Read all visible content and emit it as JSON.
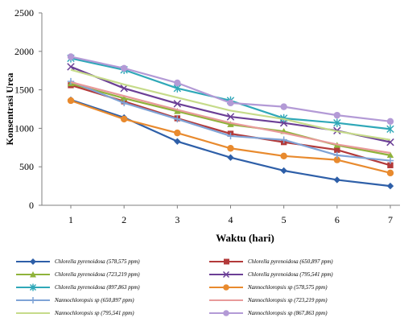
{
  "chart_data": {
    "type": "line",
    "title": "",
    "xlabel": "Waktu (hari)",
    "ylabel": "Konsentrasi Urea",
    "x": [
      1,
      2,
      3,
      4,
      5,
      6,
      7
    ],
    "xlim": [
      1,
      7
    ],
    "ylim": [
      0,
      2500
    ],
    "yticks": [
      0,
      500,
      1000,
      1500,
      2000,
      2500
    ],
    "xticks": [
      1,
      2,
      3,
      4,
      5,
      6,
      7
    ],
    "grid": false,
    "legend_position": "bottom",
    "series": [
      {
        "name": "Chlorella pyrenoidosa  (578,575 ppm)",
        "color": "#2E5FA8",
        "marker": "diamond",
        "values": [
          1370,
          1140,
          830,
          620,
          450,
          330,
          250
        ]
      },
      {
        "name": "Chlorella pyrenoidosa  (650,897 ppm)",
        "color": "#B33A3A",
        "marker": "square",
        "values": [
          1560,
          1350,
          1130,
          930,
          820,
          720,
          520
        ]
      },
      {
        "name": "Chlorella pyrenoidosa  (723,219 ppm)",
        "color": "#8FB33A",
        "marker": "triangle",
        "values": [
          1580,
          1390,
          1220,
          1050,
          960,
          780,
          650
        ]
      },
      {
        "name": "Chlorella pyrenoidosa  (795,541 ppm)",
        "color": "#6B3F96",
        "marker": "x",
        "values": [
          1800,
          1520,
          1320,
          1150,
          1070,
          970,
          820
        ]
      },
      {
        "name": "Chlorella pyrenoidosa  (897,863 ppm)",
        "color": "#2FA8B8",
        "marker": "star",
        "values": [
          1910,
          1760,
          1520,
          1360,
          1130,
          1070,
          990
        ]
      },
      {
        "name": "Nannochloropsis  sp (578,575 ppm)",
        "color": "#E88A2E",
        "marker": "circle",
        "values": [
          1360,
          1120,
          940,
          740,
          640,
          590,
          420
        ]
      },
      {
        "name": "Nannochloropsis  sp (650,897 ppm)",
        "color": "#7FA3D6",
        "marker": "plus",
        "values": [
          1610,
          1330,
          1120,
          900,
          850,
          650,
          580
        ]
      },
      {
        "name": "Nannochloropsis  sp (723,219 ppm)",
        "color": "#E89A9A",
        "marker": "none",
        "values": [
          1600,
          1420,
          1240,
          1070,
          940,
          790,
          680
        ]
      },
      {
        "name": "Nannochloropsis  sp (795,541 ppm)",
        "color": "#C6DB8A",
        "marker": "none",
        "values": [
          1760,
          1570,
          1400,
          1230,
          1120,
          960,
          850
        ]
      },
      {
        "name": "Nannochloropsis  sp (867,863 ppm)",
        "color": "#B39AD6",
        "marker": "circle",
        "values": [
          1930,
          1780,
          1590,
          1330,
          1280,
          1170,
          1090
        ]
      }
    ]
  }
}
